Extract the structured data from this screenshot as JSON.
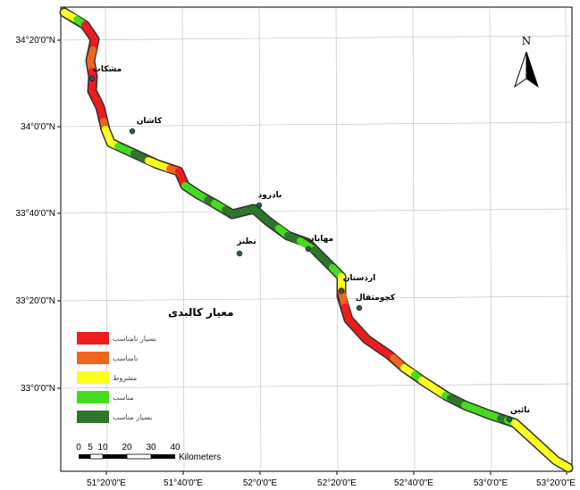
{
  "map": {
    "north_label": "N",
    "lat_labels": [
      "34°20'0\"N",
      "34°0'0\"N",
      "33°40'0\"N",
      "33°20'0\"N",
      "33°0'0\"N"
    ],
    "lon_labels": [
      "51°20'0\"E",
      "51°40'0\"E",
      "52°0'0\"E",
      "52°20'0\"E",
      "52°40'0\"E",
      "53°0'0\"E",
      "53°20'0\"E"
    ],
    "cities": [
      {
        "name": "مشکات"
      },
      {
        "name": "کاشان"
      },
      {
        "name": "بادرود"
      },
      {
        "name": "نطنز"
      },
      {
        "name": "مهاباد"
      },
      {
        "name": "اردستان"
      },
      {
        "name": "کچومثقال"
      },
      {
        "name": "نائین"
      }
    ],
    "legend": {
      "title": "معیار کالبدی",
      "classes": [
        {
          "label": "بسیار نامناسب",
          "color": "#ee1c1c"
        },
        {
          "label": "نامناسب",
          "color": "#f0641e"
        },
        {
          "label": "مشروط",
          "color": "#ffff1e"
        },
        {
          "label": "مناسب",
          "color": "#46dc1e"
        },
        {
          "label": "بسیار مناسب",
          "color": "#2d7828"
        }
      ]
    },
    "scalebar": {
      "ticks": [
        "0",
        "5",
        "10",
        "20",
        "30",
        "40"
      ],
      "unit": "Kilometers"
    }
  }
}
